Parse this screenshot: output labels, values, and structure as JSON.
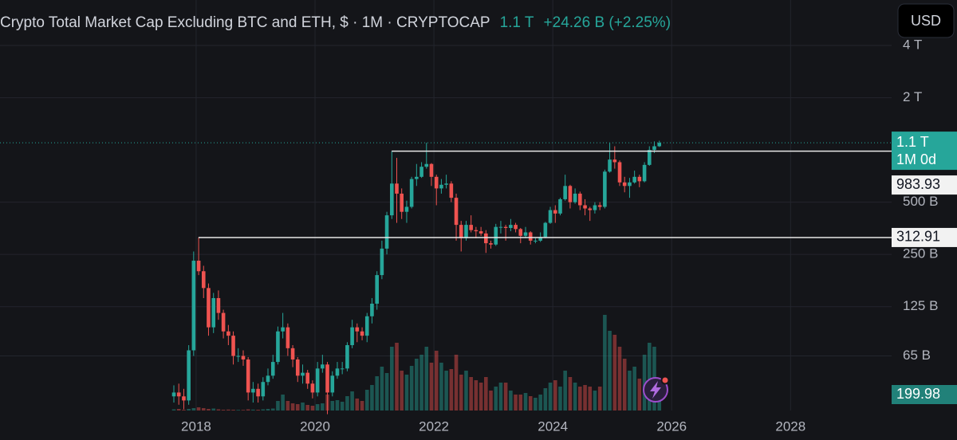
{
  "chart_data": {
    "type": "candlestick",
    "title": "Crypto Total Market Cap Excluding BTC and ETH, $ · 1M · CRYPTOCAP",
    "last": "1.1 T",
    "change": "+24.26 B (+2.25%)",
    "currency": "USD",
    "log_scale": true,
    "grid": true,
    "up_color": "#26a69a",
    "down_color": "#ef5350",
    "xlim": [
      2014.7,
      2029.7
    ],
    "xticks": [
      2018,
      2020,
      2022,
      2024,
      2026,
      2028
    ],
    "ylim": [
      31.5,
      4790
    ],
    "yticks": [
      {
        "value": 65,
        "label": "65 B"
      },
      {
        "value": 125,
        "label": "125 B"
      },
      {
        "value": 250,
        "label": "250 B"
      },
      {
        "value": 500,
        "label": "500 B"
      },
      {
        "value": 2000,
        "label": "2 T"
      },
      {
        "value": 4000,
        "label": "4 T"
      }
    ],
    "vlim": [
      0,
      1200
    ],
    "x": [
      2017.625,
      2017.708,
      2017.792,
      2017.875,
      2017.958,
      2018.042,
      2018.125,
      2018.208,
      2018.292,
      2018.375,
      2018.458,
      2018.542,
      2018.625,
      2018.708,
      2018.792,
      2018.875,
      2018.958,
      2019.042,
      2019.125,
      2019.208,
      2019.292,
      2019.375,
      2019.458,
      2019.542,
      2019.625,
      2019.708,
      2019.792,
      2019.875,
      2019.958,
      2020.042,
      2020.125,
      2020.208,
      2020.292,
      2020.375,
      2020.458,
      2020.542,
      2020.625,
      2020.708,
      2020.792,
      2020.875,
      2020.958,
      2021.042,
      2021.125,
      2021.208,
      2021.292,
      2021.375,
      2021.458,
      2021.542,
      2021.625,
      2021.708,
      2021.792,
      2021.875,
      2021.958,
      2022.042,
      2022.125,
      2022.208,
      2022.292,
      2022.375,
      2022.458,
      2022.542,
      2022.625,
      2022.708,
      2022.792,
      2022.875,
      2022.958,
      2023.042,
      2023.125,
      2023.208,
      2023.292,
      2023.375,
      2023.458,
      2023.542,
      2023.625,
      2023.708,
      2023.792,
      2023.875,
      2023.958,
      2024.042,
      2024.125,
      2024.208,
      2024.292,
      2024.375,
      2024.458,
      2024.542,
      2024.625,
      2024.708,
      2024.792,
      2024.875,
      2024.958,
      2025.042,
      2025.125,
      2025.208,
      2025.292,
      2025.375,
      2025.458,
      2025.542,
      2025.625,
      2025.708,
      2025.792
    ],
    "open": [
      38,
      40,
      38,
      36,
      70,
      230,
      200,
      160,
      95,
      140,
      115,
      90,
      85,
      65,
      65,
      62,
      40,
      42,
      38,
      46,
      50,
      60,
      90,
      95,
      72,
      62,
      50,
      52,
      45,
      40,
      55,
      58,
      40,
      50,
      55,
      55,
      75,
      95,
      90,
      85,
      110,
      130,
      190,
      270,
      420,
      640,
      560,
      440,
      470,
      680,
      700,
      800,
      830,
      700,
      600,
      630,
      640,
      530,
      370,
      310,
      370,
      345,
      340,
      330,
      290,
      285,
      360,
      360,
      355,
      370,
      350,
      320,
      335,
      300,
      300,
      315,
      380,
      450,
      430,
      520,
      620,
      500,
      560,
      480,
      460,
      450,
      480,
      470,
      750,
      880,
      850,
      650,
      620,
      650,
      700,
      660,
      820,
      1000,
      1050
    ],
    "high": [
      44,
      45,
      42,
      75,
      260,
      312.91,
      215,
      170,
      150,
      155,
      120,
      98,
      90,
      72,
      70,
      64,
      46,
      45,
      49,
      55,
      66,
      96,
      115,
      100,
      75,
      64,
      58,
      54,
      47,
      60,
      66,
      60,
      53,
      60,
      60,
      78,
      105,
      100,
      95,
      115,
      140,
      200,
      300,
      440,
      983.93,
      900,
      600,
      510,
      700,
      830,
      850,
      1100,
      840,
      720,
      680,
      720,
      660,
      560,
      390,
      390,
      420,
      360,
      360,
      345,
      300,
      375,
      390,
      370,
      400,
      380,
      355,
      360,
      340,
      310,
      335,
      385,
      470,
      480,
      530,
      720,
      630,
      600,
      575,
      520,
      470,
      500,
      500,
      770,
      1100,
      1050,
      870,
      700,
      690,
      760,
      720,
      850,
      1050,
      1120,
      1130
    ],
    "low": [
      35,
      34,
      32,
      34,
      65,
      190,
      140,
      85,
      88,
      105,
      82,
      75,
      58,
      60,
      57,
      36,
      35,
      35,
      36,
      44,
      48,
      58,
      82,
      65,
      56,
      46,
      45,
      42,
      37,
      38,
      52,
      30,
      38,
      48,
      51,
      53,
      72,
      78,
      80,
      78,
      100,
      120,
      180,
      250,
      400,
      380,
      400,
      380,
      460,
      620,
      690,
      780,
      620,
      480,
      560,
      600,
      500,
      300,
      260,
      300,
      335,
      310,
      320,
      255,
      270,
      280,
      330,
      300,
      340,
      335,
      290,
      310,
      285,
      290,
      295,
      310,
      375,
      380,
      420,
      510,
      460,
      490,
      450,
      420,
      390,
      430,
      450,
      460,
      740,
      780,
      620,
      570,
      530,
      640,
      610,
      650,
      810,
      960,
      1040
    ],
    "close": [
      40,
      38,
      36,
      70,
      230,
      200,
      160,
      95,
      140,
      115,
      90,
      85,
      65,
      65,
      62,
      40,
      42,
      38,
      46,
      50,
      60,
      90,
      95,
      72,
      62,
      50,
      52,
      45,
      40,
      55,
      58,
      40,
      50,
      55,
      55,
      75,
      95,
      90,
      85,
      110,
      130,
      190,
      270,
      420,
      640,
      560,
      440,
      470,
      680,
      700,
      800,
      830,
      700,
      600,
      630,
      640,
      530,
      370,
      310,
      370,
      345,
      340,
      330,
      290,
      285,
      360,
      360,
      355,
      370,
      350,
      320,
      335,
      300,
      300,
      315,
      380,
      450,
      430,
      520,
      620,
      500,
      560,
      480,
      460,
      450,
      480,
      470,
      750,
      880,
      850,
      650,
      620,
      650,
      700,
      660,
      820,
      1000,
      1050,
      1100
    ],
    "volume": [
      15,
      20,
      10,
      20,
      30,
      40,
      30,
      20,
      25,
      15,
      10,
      12,
      10,
      8,
      8,
      15,
      12,
      10,
      15,
      20,
      25,
      120,
      200,
      120,
      90,
      80,
      100,
      70,
      60,
      80,
      90,
      200,
      120,
      130,
      110,
      180,
      240,
      150,
      120,
      260,
      320,
      430,
      550,
      470,
      800,
      850,
      500,
      450,
      560,
      650,
      700,
      800,
      600,
      750,
      600,
      500,
      520,
      700,
      450,
      500,
      420,
      380,
      350,
      420,
      250,
      300,
      350,
      350,
      250,
      200,
      200,
      220,
      180,
      160,
      200,
      280,
      350,
      380,
      300,
      500,
      420,
      350,
      300,
      320,
      300,
      250,
      300,
      1200,
      1000,
      950,
      800,
      650,
      500,
      550,
      400,
      700,
      850,
      800,
      200
    ],
    "volume_last": {
      "value": 199.98,
      "label": "199.98"
    },
    "price_line": {
      "value": 1100,
      "label": "1.1 T",
      "countdown": "1M 0d"
    },
    "levels": [
      {
        "value": 983.93,
        "label": "983.93",
        "x": 2021.29
      },
      {
        "value": 312.91,
        "label": "312.91",
        "x": 2018.04
      }
    ]
  }
}
